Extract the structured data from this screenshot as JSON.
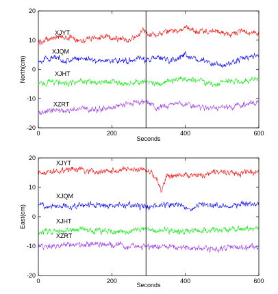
{
  "chart_data": [
    {
      "type": "line",
      "title": "",
      "xlabel": "Seconds",
      "ylabel": "North(cm)",
      "xlim": [
        0,
        600
      ],
      "ylim": [
        -20,
        20
      ],
      "xticks": [
        0,
        200,
        400,
        600
      ],
      "yticks": [
        -20,
        -10,
        0,
        10,
        20
      ],
      "grid": false,
      "vertical_line_x": 293,
      "series": [
        {
          "name": "XJYT",
          "color": "#ff0000",
          "x": [
            0,
            40,
            80,
            120,
            160,
            200,
            240,
            270,
            285,
            293,
            300,
            330,
            360,
            400,
            440,
            480,
            520,
            560,
            600
          ],
          "y": [
            9,
            11,
            11,
            10,
            11,
            11,
            10,
            11,
            14,
            13,
            12,
            12,
            13,
            14,
            13,
            13,
            12,
            13,
            12
          ]
        },
        {
          "name": "XJQM",
          "color": "#0000ff",
          "x": [
            0,
            40,
            80,
            120,
            160,
            200,
            240,
            280,
            293,
            320,
            360,
            400,
            440,
            480,
            500,
            520,
            560,
            600
          ],
          "y": [
            3,
            4,
            3,
            4,
            3,
            3,
            3,
            4,
            3,
            4,
            3,
            5,
            3,
            2,
            1,
            2,
            4,
            5
          ]
        },
        {
          "name": "XJHT",
          "color": "#00ee00",
          "x": [
            0,
            40,
            80,
            120,
            160,
            200,
            240,
            280,
            293,
            320,
            360,
            400,
            440,
            480,
            520,
            560,
            600
          ],
          "y": [
            -5,
            -4,
            -5,
            -4,
            -5,
            -4,
            -5,
            -4,
            -4,
            -5,
            -4,
            -3,
            -4,
            -5,
            -4,
            -4,
            -3
          ]
        },
        {
          "name": "XZRT",
          "color": "#9933ee",
          "x": [
            0,
            40,
            80,
            120,
            160,
            200,
            240,
            280,
            293,
            320,
            360,
            400,
            440,
            480,
            520,
            560,
            600
          ],
          "y": [
            -15,
            -14,
            -14,
            -13,
            -14,
            -13,
            -12,
            -11,
            -11,
            -13,
            -12,
            -12,
            -13,
            -13,
            -13,
            -12,
            -11
          ]
        }
      ]
    },
    {
      "type": "line",
      "title": "",
      "xlabel": "Seconds",
      "ylabel": "East(cm)",
      "xlim": [
        0,
        600
      ],
      "ylim": [
        -20,
        20
      ],
      "xticks": [
        0,
        200,
        400,
        600
      ],
      "yticks": [
        -20,
        -10,
        0,
        10,
        20
      ],
      "grid": false,
      "vertical_line_x": 293,
      "series": [
        {
          "name": "XJYT",
          "color": "#ff0000",
          "x": [
            0,
            40,
            80,
            120,
            160,
            200,
            240,
            280,
            293,
            310,
            325,
            335,
            350,
            380,
            420,
            460,
            500,
            540,
            600
          ],
          "y": [
            15,
            15.5,
            16,
            16,
            15,
            15.5,
            16,
            16,
            15.5,
            15,
            12,
            9,
            14,
            14,
            14,
            14.5,
            15,
            15,
            15
          ]
        },
        {
          "name": "XJQM",
          "color": "#0000ff",
          "x": [
            0,
            40,
            80,
            120,
            160,
            200,
            240,
            280,
            293,
            320,
            360,
            390,
            410,
            430,
            460,
            500,
            540,
            600
          ],
          "y": [
            4,
            4,
            3.5,
            4,
            4,
            3.5,
            4,
            3.5,
            3.5,
            3.5,
            4,
            4,
            2,
            4,
            4,
            4,
            4,
            4.5
          ]
        },
        {
          "name": "XJHT",
          "color": "#00ee00",
          "x": [
            0,
            40,
            80,
            120,
            160,
            200,
            240,
            280,
            293,
            320,
            360,
            400,
            440,
            480,
            520,
            560,
            600
          ],
          "y": [
            -5,
            -5,
            -5,
            -4,
            -5,
            -5,
            -5,
            -4.5,
            -4.5,
            -5,
            -4.5,
            -5,
            -4.5,
            -4.5,
            -4.5,
            -4,
            -4
          ]
        },
        {
          "name": "XZRT",
          "color": "#9933ee",
          "x": [
            0,
            40,
            80,
            120,
            160,
            200,
            240,
            280,
            293,
            320,
            360,
            400,
            440,
            480,
            520,
            560,
            600
          ],
          "y": [
            -10,
            -10,
            -9.5,
            -10,
            -9,
            -9.5,
            -10,
            -10,
            -10,
            -10.5,
            -10,
            -10.5,
            -11,
            -11,
            -10.5,
            -10.5,
            -10
          ]
        }
      ]
    }
  ]
}
